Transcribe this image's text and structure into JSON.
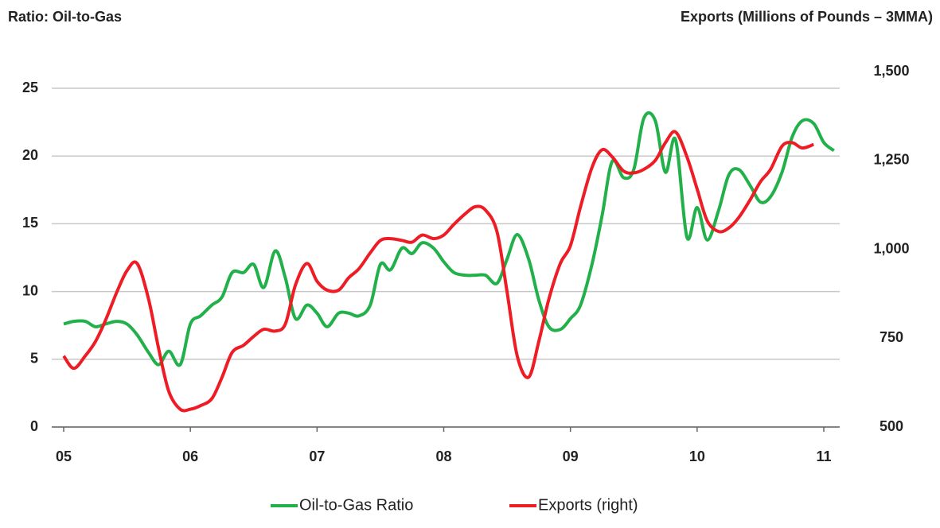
{
  "chart_data": {
    "type": "line",
    "title_left": "Ratio: Oil-to-Gas",
    "title_right": "Exports (Millions of Pounds – 3MMA)",
    "x": [
      2005,
      2005.08,
      2005.17,
      2005.25,
      2005.33,
      2005.42,
      2005.5,
      2005.58,
      2005.67,
      2005.75,
      2005.83,
      2005.92,
      2006,
      2006.08,
      2006.17,
      2006.25,
      2006.33,
      2006.42,
      2006.5,
      2006.58,
      2006.67,
      2006.75,
      2006.83,
      2006.92,
      2007,
      2007.08,
      2007.17,
      2007.25,
      2007.33,
      2007.42,
      2007.5,
      2007.58,
      2007.67,
      2007.75,
      2007.83,
      2007.92,
      2008,
      2008.08,
      2008.17,
      2008.25,
      2008.33,
      2008.42,
      2008.5,
      2008.58,
      2008.67,
      2008.75,
      2008.83,
      2008.92,
      2009,
      2009.08,
      2009.17,
      2009.25,
      2009.33,
      2009.42,
      2009.5,
      2009.58,
      2009.67,
      2009.75,
      2009.83,
      2009.92,
      2010,
      2010.08,
      2010.17,
      2010.25,
      2010.33,
      2010.42,
      2010.5,
      2010.58,
      2010.67,
      2010.75,
      2010.83,
      2010.92,
      2011,
      2011.08
    ],
    "series": [
      {
        "name": "Oil-to-Gas Ratio",
        "color": "#22b04a",
        "axis": "y",
        "values": [
          7.6,
          7.8,
          7.8,
          7.4,
          7.6,
          7.8,
          7.6,
          6.8,
          5.5,
          4.6,
          5.6,
          4.6,
          7.6,
          8.2,
          9.0,
          9.6,
          11.4,
          11.4,
          12.0,
          10.3,
          13.0,
          11.0,
          8.0,
          9.0,
          8.4,
          7.4,
          8.4,
          8.4,
          8.2,
          9.0,
          12.0,
          11.6,
          13.2,
          12.8,
          13.6,
          13.2,
          12.2,
          11.4,
          11.2,
          11.2,
          11.2,
          10.6,
          12.4,
          14.2,
          12.4,
          9.4,
          7.4,
          7.2,
          8.0,
          9.0,
          12.0,
          15.6,
          19.6,
          18.4,
          19.0,
          22.8,
          22.6,
          18.8,
          21.2,
          14.0,
          16.2,
          13.8,
          16.0,
          18.6,
          19.0,
          17.8,
          16.6,
          17.0,
          18.8,
          21.4,
          22.6,
          22.4,
          21.0,
          20.4
        ]
      },
      {
        "name": "Exports (right)",
        "color": "#ee1c24",
        "axis": "y2",
        "values": [
          700,
          665,
          700,
          740,
          800,
          880,
          940,
          960,
          860,
          720,
          600,
          550,
          550,
          560,
          580,
          640,
          710,
          730,
          755,
          775,
          770,
          790,
          900,
          960,
          910,
          885,
          885,
          920,
          945,
          990,
          1025,
          1030,
          1025,
          1020,
          1040,
          1030,
          1040,
          1070,
          1100,
          1120,
          1110,
          1050,
          880,
          700,
          640,
          740,
          860,
          960,
          1010,
          1120,
          1230,
          1280,
          1260,
          1220,
          1215,
          1225,
          1250,
          1300,
          1330,
          1260,
          1170,
          1080,
          1050,
          1060,
          1090,
          1140,
          1190,
          1225,
          1290,
          1300,
          1285,
          1295,
          null,
          null
        ]
      }
    ],
    "xlim": [
      2005,
      2011
    ],
    "xticks": [
      {
        "value": 2005,
        "label": "05"
      },
      {
        "value": 2006,
        "label": "06"
      },
      {
        "value": 2007,
        "label": "07"
      },
      {
        "value": 2008,
        "label": "08"
      },
      {
        "value": 2009,
        "label": "09"
      },
      {
        "value": 2010,
        "label": "10"
      },
      {
        "value": 2011,
        "label": "11"
      }
    ],
    "ylim": [
      0,
      25
    ],
    "yticks": [
      0,
      5,
      10,
      15,
      20,
      25
    ],
    "y2lim": [
      500,
      1500
    ],
    "y2ticks": [
      {
        "value": 500,
        "label": "500"
      },
      {
        "value": 750,
        "label": "750"
      },
      {
        "value": 1000,
        "label": "1,000"
      },
      {
        "value": 1250,
        "label": "1,250"
      },
      {
        "value": 1500,
        "label": "1,500"
      }
    ],
    "grid": true,
    "legend": "bottom"
  }
}
